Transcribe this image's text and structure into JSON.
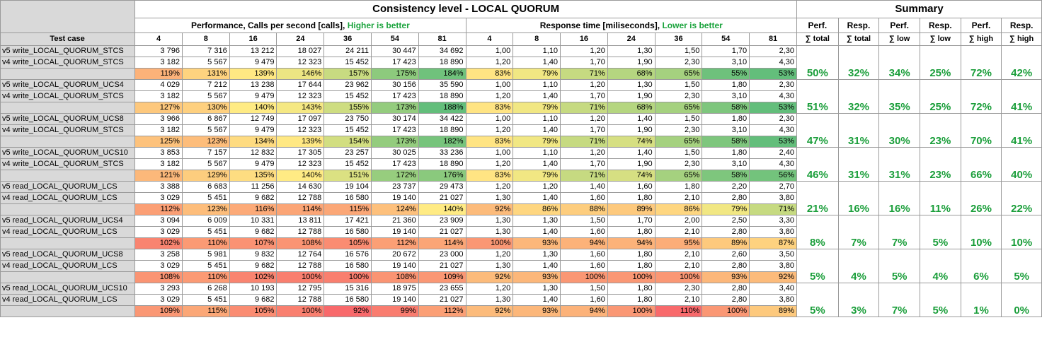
{
  "title": "Consistency level - LOCAL QUORUM",
  "summary_title": "Summary",
  "perf_header": {
    "main": "Performance, Calls per second [calls], ",
    "note": "Higher is better"
  },
  "resp_header": {
    "main": "Response time [miliseconds], ",
    "note": "Lower is better"
  },
  "test_case_label": "Test case",
  "columns": [
    "4",
    "8",
    "16",
    "24",
    "36",
    "54",
    "81"
  ],
  "summary_columns": [
    {
      "top": "Perf.",
      "bottom": "∑ total"
    },
    {
      "top": "Resp.",
      "bottom": "∑ total"
    },
    {
      "top": "Perf.",
      "bottom": "∑ low"
    },
    {
      "top": "Resp.",
      "bottom": "∑ low"
    },
    {
      "top": "Perf.",
      "bottom": "∑ high"
    },
    {
      "top": "Resp.",
      "bottom": "∑ high"
    }
  ],
  "colors": {
    "accent_green": "#1aa33c",
    "label_gray": "#d9d9d9"
  },
  "groups": [
    {
      "r1": {
        "label": "v5 write_LOCAL_QUORUM_STCS",
        "perf": [
          "3 796",
          "7 316",
          "13 212",
          "18 027",
          "24 211",
          "30 447",
          "34 692"
        ],
        "resp": [
          "1,00",
          "1,10",
          "1,20",
          "1,30",
          "1,50",
          "1,70",
          "2,30"
        ]
      },
      "r2": {
        "label": "v4 write_LOCAL_QUORUM_STCS",
        "perf": [
          "3 182",
          "5 567",
          "9 479",
          "12 323",
          "15 452",
          "17 423",
          "18 890"
        ],
        "resp": [
          "1,20",
          "1,40",
          "1,70",
          "1,90",
          "2,30",
          "3,10",
          "4,30"
        ]
      },
      "pp": [
        "119%",
        "131%",
        "139%",
        "146%",
        "157%",
        "175%",
        "184%"
      ],
      "rp": [
        "83%",
        "79%",
        "71%",
        "68%",
        "65%",
        "55%",
        "53%"
      ],
      "summary": [
        "50%",
        "32%",
        "34%",
        "25%",
        "72%",
        "42%"
      ]
    },
    {
      "r1": {
        "label": "v5 write_LOCAL_QUORUM_UCS4",
        "perf": [
          "4 029",
          "7 212",
          "13 238",
          "17 644",
          "23 962",
          "30 156",
          "35 590"
        ],
        "resp": [
          "1,00",
          "1,10",
          "1,20",
          "1,30",
          "1,50",
          "1,80",
          "2,30"
        ]
      },
      "r2": {
        "label": "v4 write_LOCAL_QUORUM_STCS",
        "perf": [
          "3 182",
          "5 567",
          "9 479",
          "12 323",
          "15 452",
          "17 423",
          "18 890"
        ],
        "resp": [
          "1,20",
          "1,40",
          "1,70",
          "1,90",
          "2,30",
          "3,10",
          "4,30"
        ]
      },
      "pp": [
        "127%",
        "130%",
        "140%",
        "143%",
        "155%",
        "173%",
        "188%"
      ],
      "rp": [
        "83%",
        "79%",
        "71%",
        "68%",
        "65%",
        "58%",
        "53%"
      ],
      "summary": [
        "51%",
        "32%",
        "35%",
        "25%",
        "72%",
        "41%"
      ]
    },
    {
      "r1": {
        "label": "v5 write_LOCAL_QUORUM_UCS8",
        "perf": [
          "3 966",
          "6 867",
          "12 749",
          "17 097",
          "23 750",
          "30 174",
          "34 422"
        ],
        "resp": [
          "1,00",
          "1,10",
          "1,20",
          "1,40",
          "1,50",
          "1,80",
          "2,30"
        ]
      },
      "r2": {
        "label": "v4 write_LOCAL_QUORUM_STCS",
        "perf": [
          "3 182",
          "5 567",
          "9 479",
          "12 323",
          "15 452",
          "17 423",
          "18 890"
        ],
        "resp": [
          "1,20",
          "1,40",
          "1,70",
          "1,90",
          "2,30",
          "3,10",
          "4,30"
        ]
      },
      "pp": [
        "125%",
        "123%",
        "134%",
        "139%",
        "154%",
        "173%",
        "182%"
      ],
      "rp": [
        "83%",
        "79%",
        "71%",
        "74%",
        "65%",
        "58%",
        "53%"
      ],
      "summary": [
        "47%",
        "31%",
        "30%",
        "23%",
        "70%",
        "41%"
      ]
    },
    {
      "r1": {
        "label": "v5 write_LOCAL_QUORUM_UCS10",
        "perf": [
          "3 853",
          "7 157",
          "12 832",
          "17 305",
          "23 257",
          "30 025",
          "33 236"
        ],
        "resp": [
          "1,00",
          "1,10",
          "1,20",
          "1,40",
          "1,50",
          "1,80",
          "2,40"
        ]
      },
      "r2": {
        "label": "v4 write_LOCAL_QUORUM_STCS",
        "perf": [
          "3 182",
          "5 567",
          "9 479",
          "12 323",
          "15 452",
          "17 423",
          "18 890"
        ],
        "resp": [
          "1,20",
          "1,40",
          "1,70",
          "1,90",
          "2,30",
          "3,10",
          "4,30"
        ]
      },
      "pp": [
        "121%",
        "129%",
        "135%",
        "140%",
        "151%",
        "172%",
        "176%"
      ],
      "rp": [
        "83%",
        "79%",
        "71%",
        "74%",
        "65%",
        "58%",
        "56%"
      ],
      "summary": [
        "46%",
        "31%",
        "31%",
        "23%",
        "66%",
        "40%"
      ]
    },
    {
      "r1": {
        "label": "v5 read_LOCAL_QUORUM_LCS",
        "perf": [
          "3 388",
          "6 683",
          "11 256",
          "14 630",
          "19 104",
          "23 737",
          "29 473"
        ],
        "resp": [
          "1,20",
          "1,20",
          "1,40",
          "1,60",
          "1,80",
          "2,20",
          "2,70"
        ]
      },
      "r2": {
        "label": "v4 read_LOCAL_QUORUM_LCS",
        "perf": [
          "3 029",
          "5 451",
          "9 682",
          "12 788",
          "16 580",
          "19 140",
          "21 027"
        ],
        "resp": [
          "1,30",
          "1,40",
          "1,60",
          "1,80",
          "2,10",
          "2,80",
          "3,80"
        ]
      },
      "pp": [
        "112%",
        "123%",
        "116%",
        "114%",
        "115%",
        "124%",
        "140%"
      ],
      "rp": [
        "92%",
        "86%",
        "88%",
        "89%",
        "86%",
        "79%",
        "71%"
      ],
      "summary": [
        "21%",
        "16%",
        "16%",
        "11%",
        "26%",
        "22%"
      ]
    },
    {
      "r1": {
        "label": "v5 read_LOCAL_QUORUM_UCS4",
        "perf": [
          "3 094",
          "6 009",
          "10 331",
          "13 811",
          "17 421",
          "21 360",
          "23 909"
        ],
        "resp": [
          "1,30",
          "1,30",
          "1,50",
          "1,70",
          "2,00",
          "2,50",
          "3,30"
        ]
      },
      "r2": {
        "label": "v4 read_LOCAL_QUORUM_LCS",
        "perf": [
          "3 029",
          "5 451",
          "9 682",
          "12 788",
          "16 580",
          "19 140",
          "21 027"
        ],
        "resp": [
          "1,30",
          "1,40",
          "1,60",
          "1,80",
          "2,10",
          "2,80",
          "3,80"
        ]
      },
      "pp": [
        "102%",
        "110%",
        "107%",
        "108%",
        "105%",
        "112%",
        "114%"
      ],
      "rp": [
        "100%",
        "93%",
        "94%",
        "94%",
        "95%",
        "89%",
        "87%"
      ],
      "summary": [
        "8%",
        "7%",
        "7%",
        "5%",
        "10%",
        "10%"
      ]
    },
    {
      "r1": {
        "label": "v5 read_LOCAL_QUORUM_UCS8",
        "perf": [
          "3 258",
          "5 981",
          "9 832",
          "12 764",
          "16 576",
          "20 672",
          "23 000"
        ],
        "resp": [
          "1,20",
          "1,30",
          "1,60",
          "1,80",
          "2,10",
          "2,60",
          "3,50"
        ]
      },
      "r2": {
        "label": "v4 read_LOCAL_QUORUM_LCS",
        "perf": [
          "3 029",
          "5 451",
          "9 682",
          "12 788",
          "16 580",
          "19 140",
          "21 027"
        ],
        "resp": [
          "1,30",
          "1,40",
          "1,60",
          "1,80",
          "2,10",
          "2,80",
          "3,80"
        ]
      },
      "pp": [
        "108%",
        "110%",
        "102%",
        "100%",
        "100%",
        "108%",
        "109%"
      ],
      "rp": [
        "92%",
        "93%",
        "100%",
        "100%",
        "100%",
        "93%",
        "92%"
      ],
      "summary": [
        "5%",
        "4%",
        "5%",
        "4%",
        "6%",
        "5%"
      ]
    },
    {
      "r1": {
        "label": "v5 read_LOCAL_QUORUM_UCS10",
        "perf": [
          "3 293",
          "6 268",
          "10 193",
          "12 795",
          "15 316",
          "18 975",
          "23 655"
        ],
        "resp": [
          "1,20",
          "1,30",
          "1,50",
          "1,80",
          "2,30",
          "2,80",
          "3,40"
        ]
      },
      "r2": {
        "label": "v4 read_LOCAL_QUORUM_LCS",
        "perf": [
          "3 029",
          "5 451",
          "9 682",
          "12 788",
          "16 580",
          "19 140",
          "21 027"
        ],
        "resp": [
          "1,30",
          "1,40",
          "1,60",
          "1,80",
          "2,10",
          "2,80",
          "3,80"
        ]
      },
      "pp": [
        "109%",
        "115%",
        "105%",
        "100%",
        "92%",
        "99%",
        "112%"
      ],
      "rp": [
        "92%",
        "93%",
        "94%",
        "100%",
        "110%",
        "100%",
        "89%"
      ],
      "summary": [
        "5%",
        "3%",
        "7%",
        "5%",
        "1%",
        "0%"
      ]
    }
  ]
}
